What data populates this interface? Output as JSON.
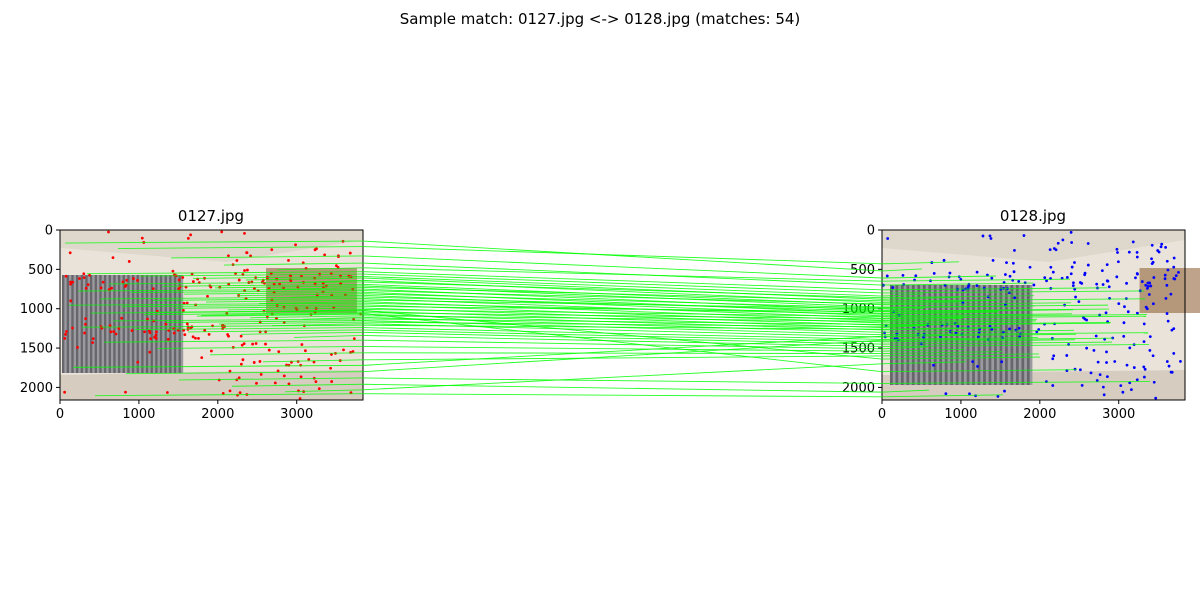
{
  "figure": {
    "suptitle": "Sample match: 0127.jpg <-> 0128.jpg (matches: 54)"
  },
  "colors": {
    "match_line": "#00ff00",
    "left_keypoints": "#ff0000",
    "right_keypoints": "#0000ff",
    "ceiling": "#ded8cc",
    "wall": "#e9e3da",
    "blind_dark": "#3c3c40",
    "blind_light": "#9a9aa0",
    "floor": "#d6cdc0",
    "wood": "#8b5a2b"
  },
  "chart_data": [
    {
      "type": "scatter",
      "title": "0127.jpg",
      "xlabel": "",
      "ylabel": "",
      "xlim": [
        0,
        3840
      ],
      "ylim": [
        2160,
        0
      ],
      "xticks": [
        0,
        1000,
        2000,
        3000
      ],
      "yticks": [
        0,
        500,
        1000,
        1500,
        2000
      ],
      "grid": false,
      "image": "0127.jpg",
      "keypoint_color": "#ff0000"
    },
    {
      "type": "scatter",
      "title": "0128.jpg",
      "xlabel": "",
      "ylabel": "",
      "xlim": [
        0,
        3840
      ],
      "ylim": [
        2160,
        0
      ],
      "xticks": [
        0,
        1000,
        2000,
        3000
      ],
      "yticks": [
        0,
        500,
        1000,
        1500,
        2000
      ],
      "grid": false,
      "image": "0128.jpg",
      "keypoint_color": "#0000ff"
    }
  ],
  "matches": {
    "count": 54,
    "color": "#00ff00",
    "pairs": [
      [
        [
          3840,
          140
        ],
        [
          3840,
          520
        ]
      ],
      [
        [
          3840,
          210
        ],
        [
          3840,
          430
        ]
      ],
      [
        [
          3840,
          330
        ],
        [
          3840,
          610
        ]
      ],
      [
        [
          3840,
          420
        ],
        [
          3840,
          700
        ]
      ],
      [
        [
          3840,
          480
        ],
        [
          3840,
          650
        ]
      ],
      [
        [
          3840,
          530
        ],
        [
          3840,
          760
        ]
      ],
      [
        [
          3840,
          560
        ],
        [
          3840,
          800
        ]
      ],
      [
        [
          3840,
          590
        ],
        [
          3840,
          840
        ]
      ],
      [
        [
          3840,
          610
        ],
        [
          3840,
          880
        ]
      ],
      [
        [
          3840,
          640
        ],
        [
          3840,
          920
        ]
      ],
      [
        [
          3840,
          660
        ],
        [
          3840,
          860
        ]
      ],
      [
        [
          3840,
          690
        ],
        [
          3840,
          950
        ]
      ],
      [
        [
          3840,
          710
        ],
        [
          3840,
          980
        ]
      ],
      [
        [
          3840,
          730
        ],
        [
          3840,
          900
        ]
      ],
      [
        [
          3840,
          750
        ],
        [
          3840,
          1020
        ]
      ],
      [
        [
          3840,
          770
        ],
        [
          3840,
          940
        ]
      ],
      [
        [
          3840,
          790
        ],
        [
          3840,
          1060
        ]
      ],
      [
        [
          3840,
          810
        ],
        [
          3840,
          990
        ]
      ],
      [
        [
          3840,
          830
        ],
        [
          3840,
          1090
        ]
      ],
      [
        [
          3840,
          850
        ],
        [
          3840,
          1030
        ]
      ],
      [
        [
          3840,
          870
        ],
        [
          3840,
          1120
        ]
      ],
      [
        [
          3840,
          890
        ],
        [
          3840,
          1000
        ]
      ],
      [
        [
          3840,
          910
        ],
        [
          3840,
          1150
        ]
      ],
      [
        [
          3840,
          930
        ],
        [
          3840,
          1070
        ]
      ],
      [
        [
          3840,
          950
        ],
        [
          3840,
          1180
        ]
      ],
      [
        [
          3840,
          970
        ],
        [
          3840,
          1040
        ]
      ],
      [
        [
          3840,
          990
        ],
        [
          3840,
          1210
        ]
      ],
      [
        [
          3840,
          1010
        ],
        [
          3840,
          1100
        ]
      ],
      [
        [
          3840,
          1030
        ],
        [
          3840,
          1240
        ]
      ],
      [
        [
          3840,
          1050
        ],
        [
          3840,
          1130
        ]
      ],
      [
        [
          3840,
          1070
        ],
        [
          3840,
          1270
        ]
      ],
      [
        [
          3840,
          1090
        ],
        [
          3840,
          1160
        ]
      ],
      [
        [
          3840,
          1110
        ],
        [
          3840,
          1300
        ]
      ],
      [
        [
          3840,
          1130
        ],
        [
          3840,
          1200
        ]
      ],
      [
        [
          3840,
          1150
        ],
        [
          3840,
          1330
        ]
      ],
      [
        [
          3840,
          1170
        ],
        [
          3840,
          1230
        ]
      ],
      [
        [
          3840,
          1190
        ],
        [
          3840,
          1360
        ]
      ],
      [
        [
          3840,
          1210
        ],
        [
          3840,
          1260
        ]
      ],
      [
        [
          3840,
          1240
        ],
        [
          3840,
          1390
        ]
      ],
      [
        [
          3840,
          1270
        ],
        [
          3840,
          1420
        ]
      ],
      [
        [
          3840,
          1300
        ],
        [
          3840,
          1450
        ]
      ],
      [
        [
          3840,
          1340
        ],
        [
          3840,
          1480
        ]
      ],
      [
        [
          3840,
          1400
        ],
        [
          3840,
          1510
        ]
      ],
      [
        [
          3840,
          1480
        ],
        [
          3840,
          1540
        ]
      ],
      [
        [
          3840,
          1560
        ],
        [
          3840,
          1570
        ]
      ],
      [
        [
          3840,
          1650
        ],
        [
          3840,
          1600
        ]
      ],
      [
        [
          3840,
          1720
        ],
        [
          3840,
          1350
        ]
      ],
      [
        [
          3840,
          1800
        ],
        [
          3840,
          1400
        ]
      ],
      [
        [
          3840,
          1880
        ],
        [
          3840,
          1950
        ]
      ],
      [
        [
          3840,
          1960
        ],
        [
          3840,
          2060
        ]
      ],
      [
        [
          3840,
          2030
        ],
        [
          3840,
          1700
        ]
      ],
      [
        [
          3840,
          2080
        ],
        [
          3840,
          2120
        ]
      ],
      [
        [
          3840,
          1020
        ],
        [
          3840,
          1640
        ]
      ],
      [
        [
          3840,
          1060
        ],
        [
          3840,
          1800
        ]
      ]
    ]
  }
}
